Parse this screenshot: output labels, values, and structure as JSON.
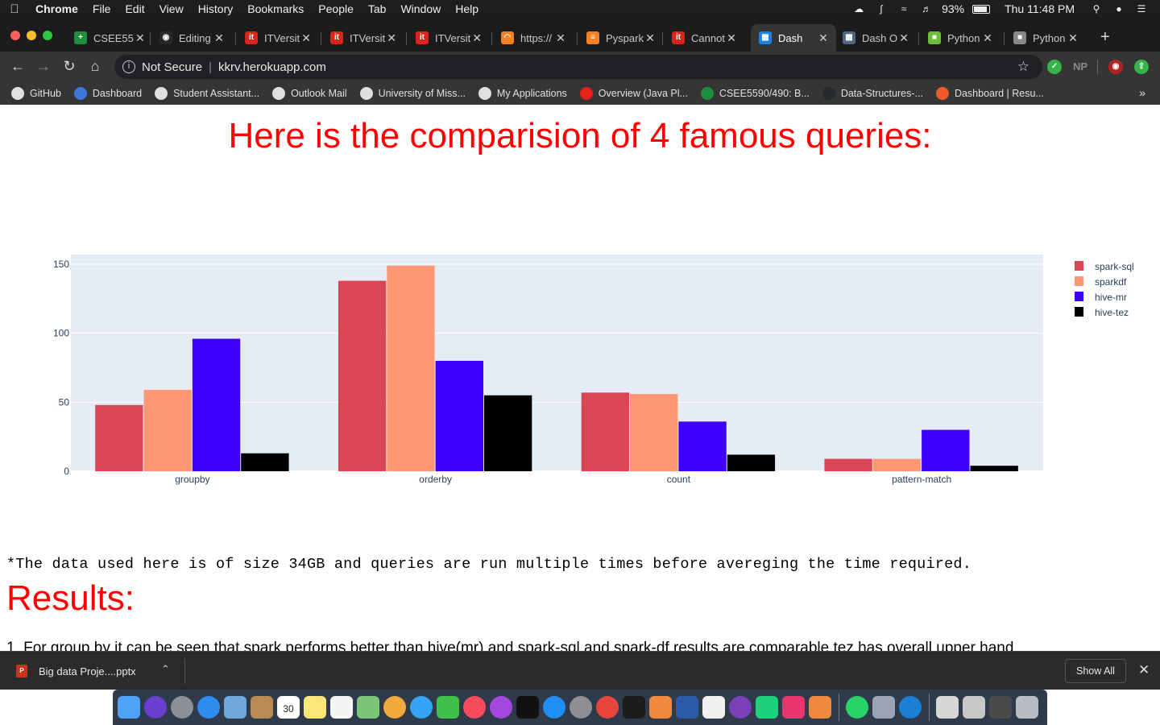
{
  "menubar": {
    "app_name": "Chrome",
    "menus": [
      "File",
      "Edit",
      "View",
      "History",
      "Bookmarks",
      "People",
      "Tab",
      "Window",
      "Help"
    ],
    "battery": "93%",
    "clock": "Thu 11:48 PM"
  },
  "tabs": [
    {
      "title": "CSEE55",
      "icon": "plus-icon",
      "color": "#1e8e3e",
      "active": false
    },
    {
      "title": "Editing",
      "icon": "github-icon",
      "color": "#24292e",
      "active": false
    },
    {
      "title": "ITVersit",
      "icon": "itversity-icon",
      "color": "#d9261c",
      "active": false
    },
    {
      "title": "ITVersit",
      "icon": "itversity-icon",
      "color": "#d9261c",
      "active": false
    },
    {
      "title": "ITVersit",
      "icon": "itversity-icon",
      "color": "#d9261c",
      "active": false
    },
    {
      "title": "https://",
      "icon": "loading-icon",
      "color": "#f48024",
      "active": false
    },
    {
      "title": "Pyspark",
      "icon": "stackoverflow-icon",
      "color": "#f48024",
      "active": false
    },
    {
      "title": "Cannot",
      "icon": "itversity-icon",
      "color": "#d9261c",
      "active": false
    },
    {
      "title": "Dash",
      "icon": "dash-icon",
      "color": "#1b82e6",
      "active": true
    },
    {
      "title": "Dash O",
      "icon": "dash-icon",
      "color": "#506784",
      "active": false
    },
    {
      "title": "Python",
      "icon": "python-icon",
      "color": "#6cbf3b",
      "active": false
    },
    {
      "title": "Python",
      "icon": "python-icon",
      "color": "#888888",
      "active": false
    }
  ],
  "address": {
    "security": "Not Secure",
    "url": "kkrv.herokuapp.com"
  },
  "extensions": [
    "NP"
  ],
  "bookmarks": [
    {
      "label": "GitHub",
      "color": "#e0e0e0"
    },
    {
      "label": "Dashboard",
      "color": "#3c78d8"
    },
    {
      "label": "Student Assistant...",
      "color": "#e0e0e0"
    },
    {
      "label": "Outlook Mail",
      "color": "#e0e0e0"
    },
    {
      "label": "University of Miss...",
      "color": "#e0e0e0"
    },
    {
      "label": "My Applications",
      "color": "#e0e0e0"
    },
    {
      "label": "Overview (Java Pl...",
      "color": "#e2231a"
    },
    {
      "label": "CSEE5590/490: B...",
      "color": "#1e8e3e"
    },
    {
      "label": "Data-Structures-...",
      "color": "#24292e"
    },
    {
      "label": "Dashboard | Resu...",
      "color": "#f05a28"
    }
  ],
  "page": {
    "heading": "Here is the comparision of 4 famous queries:",
    "note": "*The data used here is of size 34GB and queries are run multiple times before avereging the time required.",
    "results_heading": "Results:",
    "result_line": "1. For group by it can be seen that spark performs better than hive(mr) and spark-sql and spark-df results are comparable tez has overall upper hand"
  },
  "chart_data": {
    "type": "bar",
    "categories": [
      "groupby",
      "orderby",
      "count",
      "pattern-match"
    ],
    "series": [
      {
        "name": "spark-sql",
        "color": "#d94755",
        "values": [
          48,
          138,
          57,
          9
        ]
      },
      {
        "name": "sparkdf",
        "color": "#fe9872",
        "values": [
          59,
          149,
          56,
          9
        ]
      },
      {
        "name": "hive-mr",
        "color": "#3e00ff",
        "values": [
          96,
          80,
          36,
          30
        ]
      },
      {
        "name": "hive-tez",
        "color": "#000000",
        "values": [
          13,
          55,
          12,
          4
        ]
      }
    ],
    "yticks": [
      0,
      50,
      100,
      150
    ],
    "ylim": [
      0,
      157
    ],
    "grid": true,
    "legend": "right",
    "plot_bgcolor": "#e5ecf6"
  },
  "shelf": {
    "file": "Big data Proje....pptx",
    "show_all": "Show All"
  },
  "dock": {
    "calendar_day": "30"
  }
}
